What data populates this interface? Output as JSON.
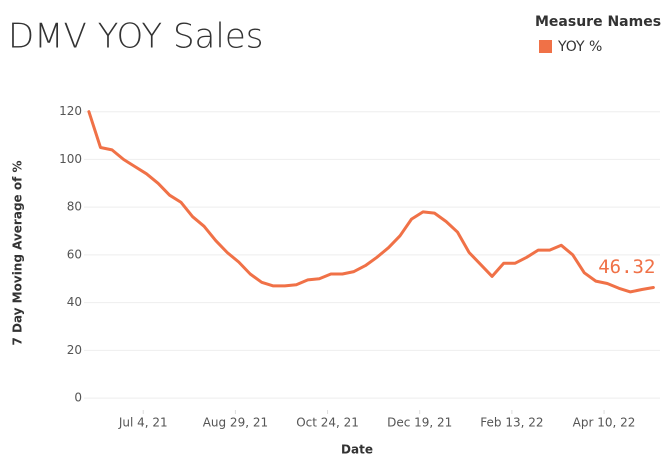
{
  "chart_data": {
    "type": "line",
    "title": "DMV YOY Sales",
    "x_label": "Date",
    "y_label": "7 Day Moving Average of %",
    "legend_title": "Measure Names",
    "legend": "top-right",
    "grid": true,
    "x": [
      "2021-06-01",
      "2021-06-08",
      "2021-06-15",
      "2021-06-22",
      "2021-06-29",
      "2021-07-06",
      "2021-07-13",
      "2021-07-20",
      "2021-07-27",
      "2021-08-03",
      "2021-08-10",
      "2021-08-17",
      "2021-08-24",
      "2021-08-31",
      "2021-09-07",
      "2021-09-14",
      "2021-09-21",
      "2021-09-28",
      "2021-10-05",
      "2021-10-12",
      "2021-10-19",
      "2021-10-26",
      "2021-11-02",
      "2021-11-09",
      "2021-11-16",
      "2021-11-23",
      "2021-11-30",
      "2021-12-07",
      "2021-12-14",
      "2021-12-21",
      "2021-12-28",
      "2022-01-04",
      "2022-01-11",
      "2022-01-18",
      "2022-01-25",
      "2022-02-01",
      "2022-02-08",
      "2022-02-15",
      "2022-02-22",
      "2022-03-01",
      "2022-03-08",
      "2022-03-15",
      "2022-03-22",
      "2022-03-29",
      "2022-04-05",
      "2022-04-12",
      "2022-04-19",
      "2022-04-26",
      "2022-05-03",
      "2022-05-10"
    ],
    "series": [
      {
        "name": "YOY %",
        "color": "#f07147",
        "values": [
          120,
          105,
          104,
          100,
          97,
          94,
          90,
          85,
          82,
          76,
          72,
          66,
          61,
          57,
          52,
          48.5,
          47,
          47,
          47.5,
          49.5,
          50,
          52,
          52,
          53,
          55.5,
          59,
          63,
          68,
          75,
          78,
          77.5,
          74,
          69.5,
          61,
          56,
          51,
          56.5,
          56.5,
          59,
          62,
          62,
          64,
          60,
          52.5,
          49,
          48,
          46,
          44.5,
          45.5,
          46.32
        ]
      }
    ],
    "xlim": [
      "2021-05-29",
      "2022-05-14"
    ],
    "xticks": [
      {
        "value": "2021-07-04",
        "label": "Jul 4, 21"
      },
      {
        "value": "2021-08-29",
        "label": "Aug 29, 21"
      },
      {
        "value": "2021-10-24",
        "label": "Oct 24, 21"
      },
      {
        "value": "2021-12-19",
        "label": "Dec 19, 21"
      },
      {
        "value": "2022-02-13",
        "label": "Feb 13, 22"
      },
      {
        "value": "2022-04-10",
        "label": "Apr 10, 22"
      }
    ],
    "ylim": [
      -5,
      127
    ],
    "yticks": [
      0,
      20,
      40,
      60,
      80,
      100,
      120
    ]
  }
}
